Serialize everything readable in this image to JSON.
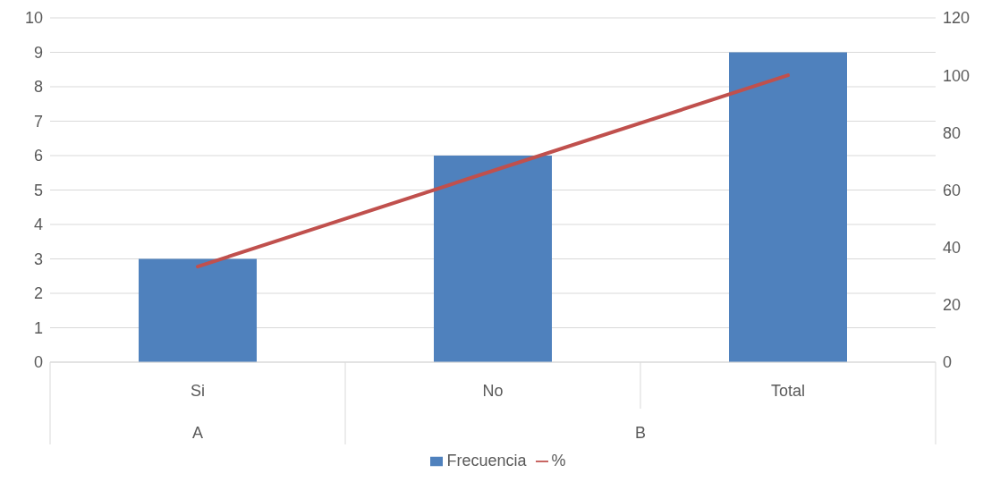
{
  "chart_data": {
    "type": "bar",
    "categories": [
      "Si",
      "No",
      "Total"
    ],
    "series": [
      {
        "name": "Frecuencia",
        "color": "#4f81bd",
        "values": [
          3,
          6,
          9
        ]
      },
      {
        "name": "%",
        "type": "line",
        "axis": "y2",
        "color": "#c0504d",
        "values": [
          33.3,
          66.7,
          100
        ]
      }
    ],
    "annotations": [
      "A",
      "B"
    ],
    "ylim": [
      0,
      10
    ],
    "yticks": [
      0,
      1,
      2,
      3,
      4,
      5,
      6,
      7,
      8,
      9,
      10
    ],
    "y2lim": [
      0,
      120
    ],
    "y2ticks": [
      0,
      20,
      40,
      60,
      80,
      100,
      120
    ],
    "grid": "y",
    "legend": "bottom",
    "marker": "none",
    "line_style": "solid"
  }
}
